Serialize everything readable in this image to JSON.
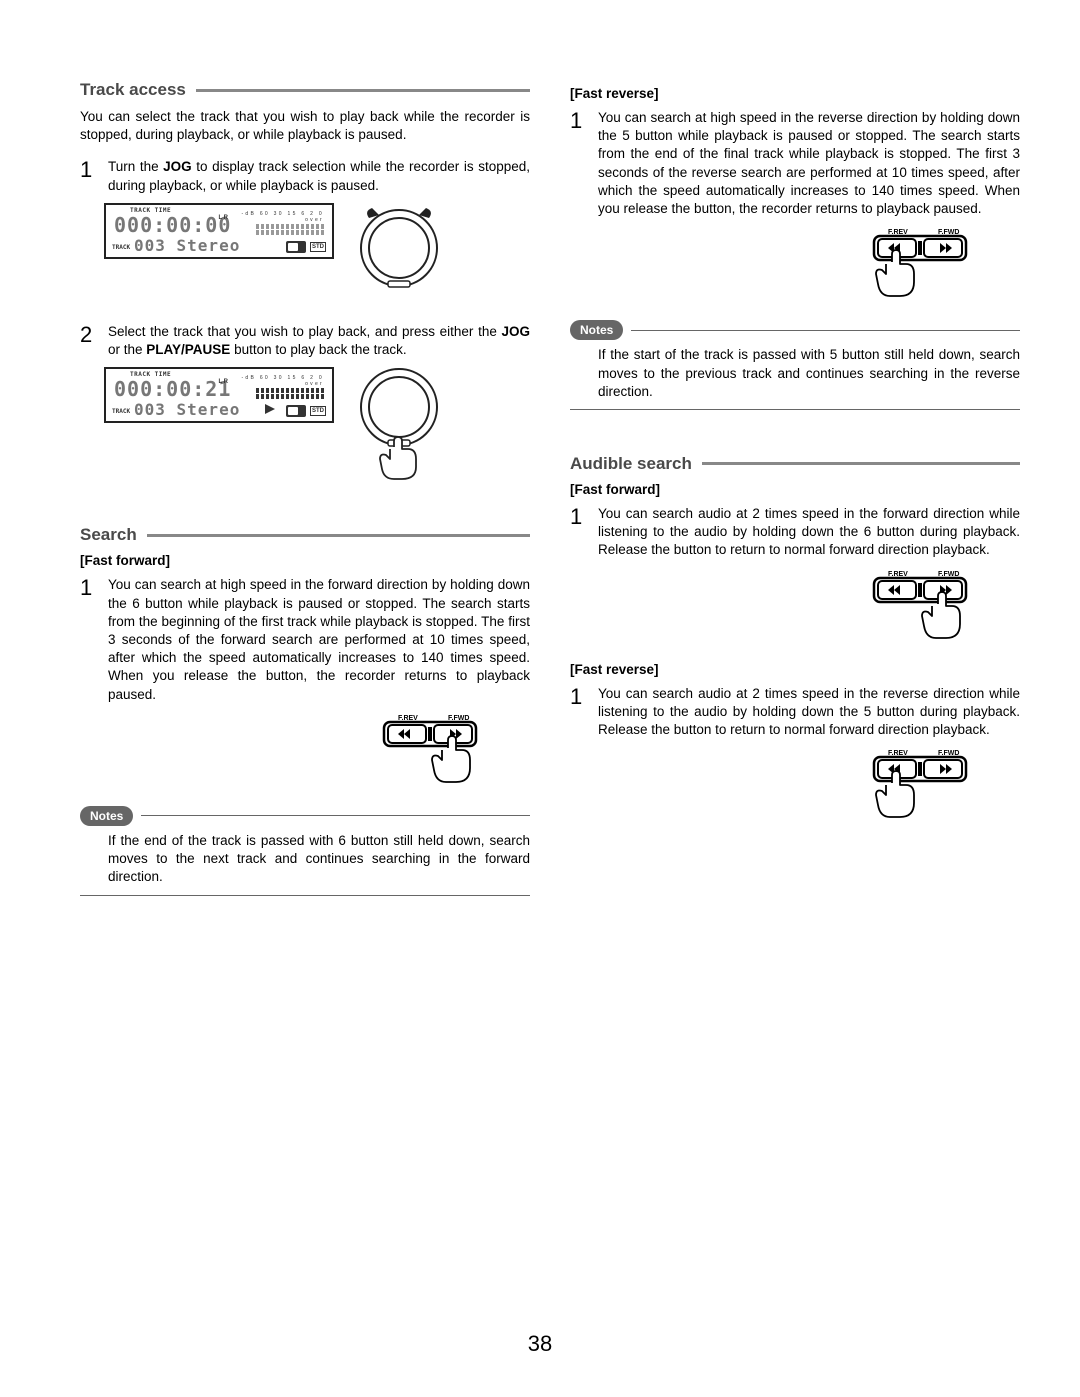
{
  "page_number": "38",
  "left": {
    "track_access": {
      "title": "Track access",
      "intro": "You can select the track that you wish to play back while the recorder is stopped, during playback, or while playback is paused.",
      "step1": "Turn the <b>JOG</b> to display track selection while the recorder is stopped, during playback, or while playback is paused.",
      "step2": "Select the track that you wish to play back, and press either the <b>JOG</b> or the <b>PLAY/PAUSE</b> button to play back the track.",
      "lcd1": {
        "track_time_label": "TRACK TIME",
        "time": "000:00:00",
        "track_label": "TRACK",
        "track": "003 Stereo",
        "std": "STD",
        "meter_scale": "-dB 60 30 15 6 2 0 over",
        "lr": "L\nR",
        "meter_on": false
      },
      "lcd2": {
        "track_time_label": "TRACK TIME",
        "time": "000:00:21",
        "track_label": "TRACK",
        "track": "003 Stereo",
        "std": "STD",
        "meter_scale": "-dB 60 30 15 6 2 0 over",
        "lr": "L\nR",
        "meter_on": true
      }
    },
    "search": {
      "title": "Search",
      "ff_label": "[Fast forward]",
      "ff_body": "You can search at high speed in the forward direction by holding down the 6 button while playback is paused or stopped. The search starts from the beginning of the first track while playback is stopped.\nThe first 3 seconds of the forward search are performed at 10 times speed, after which the speed automatically increases to 140 times speed.\nWhen you release the button, the recorder returns to playback paused.",
      "notes_label": "Notes",
      "notes_body": "If the end of the track is passed with 6 button still held down, search moves to the next track and continues searching in the forward direction."
    }
  },
  "right": {
    "fr_label": "[Fast reverse]",
    "fr_body": "You can search at high speed in the reverse direction by holding down the 5 button while playback is paused or stopped. The search starts from the end of the final track while playback is stopped.\nThe first 3 seconds of the reverse search are performed at 10 times speed, after which the speed automatically increases to 140 times speed.\nWhen you release the button, the recorder returns to playback paused.",
    "notes_label": "Notes",
    "notes_body": "If the start of the track is passed with 5 button still held down, search moves to the previous track and continues searching in the reverse direction.",
    "audible": {
      "title": "Audible search",
      "ff_label": "[Fast forward]",
      "ff_body": "You can search audio at 2 times speed in the forward direction while listening to the audio by holding down the 6 button during playback. Release the button to return to normal forward direction playback.",
      "fr_label": "[Fast reverse]",
      "fr_body": "You can search audio at 2 times speed in the reverse direction while listening to the audio by holding down the 5 button during playback. Release the button to return to normal forward direction playback."
    }
  },
  "btn_labels": {
    "frev": "F.REV",
    "ffwd": "F.FWD"
  }
}
